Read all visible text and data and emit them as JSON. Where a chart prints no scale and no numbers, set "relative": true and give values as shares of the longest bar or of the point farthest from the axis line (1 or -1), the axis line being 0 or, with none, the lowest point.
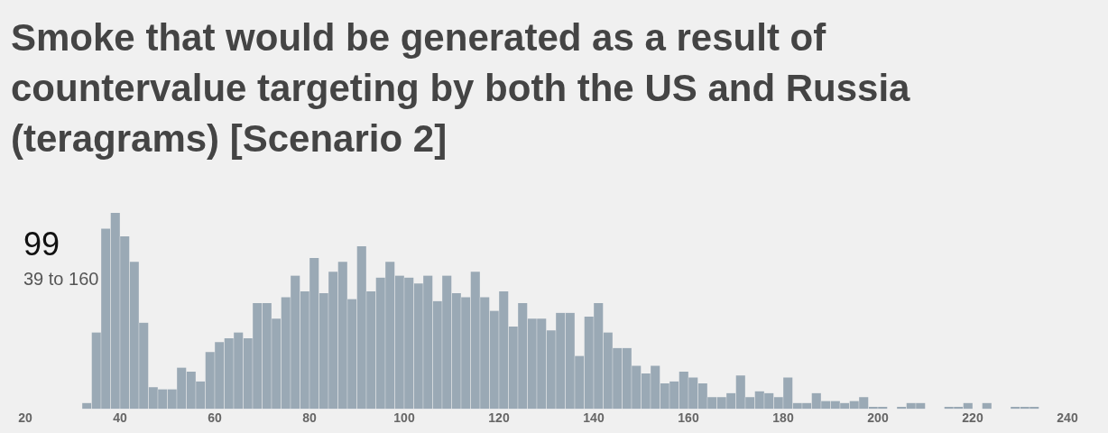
{
  "chart_data": {
    "type": "bar",
    "title": "Smoke that would be generated as a result of countervalue targeting by both the US and Russia (teragrams) [Scenario 2]",
    "annotations": [
      "99",
      "39 to 160"
    ],
    "relative": true,
    "color": "#9aa9b5",
    "x": [
      33,
      35,
      37,
      39,
      41,
      43,
      45,
      47,
      49,
      51,
      53,
      55,
      57,
      59,
      61,
      63,
      65,
      67,
      69,
      71,
      73,
      75,
      77,
      79,
      81,
      83,
      85,
      87,
      89,
      91,
      93,
      95,
      97,
      99,
      101,
      103,
      105,
      107,
      109,
      111,
      113,
      115,
      117,
      119,
      121,
      123,
      125,
      127,
      129,
      131,
      133,
      135,
      137,
      139,
      141,
      143,
      145,
      147,
      149,
      151,
      153,
      155,
      157,
      159,
      161,
      163,
      165,
      167,
      169,
      171,
      173,
      175,
      177,
      179,
      181,
      183,
      185,
      187,
      189,
      191,
      193,
      195,
      197,
      199,
      201,
      203,
      205,
      207,
      209,
      211,
      213,
      215,
      217,
      219,
      221,
      223,
      225,
      227,
      229,
      231,
      233
    ],
    "values": [
      0.03,
      0.39,
      0.92,
      1,
      0.88,
      0.75,
      0.44,
      0.11,
      0.1,
      0.1,
      0.21,
      0.19,
      0.14,
      0.29,
      0.34,
      0.36,
      0.39,
      0.36,
      0.54,
      0.54,
      0.46,
      0.57,
      0.68,
      0.6,
      0.77,
      0.59,
      0.7,
      0.75,
      0.56,
      0.83,
      0.6,
      0.67,
      0.75,
      0.68,
      0.67,
      0.64,
      0.68,
      0.55,
      0.68,
      0.59,
      0.57,
      0.7,
      0.57,
      0.5,
      0.6,
      0.42,
      0.54,
      0.46,
      0.46,
      0.4,
      0.49,
      0.49,
      0.27,
      0.47,
      0.54,
      0.39,
      0.31,
      0.31,
      0.22,
      0.18,
      0.22,
      0.13,
      0.14,
      0.19,
      0.16,
      0.13,
      0.06,
      0.06,
      0.08,
      0.17,
      0.06,
      0.09,
      0.08,
      0.06,
      0.16,
      0.03,
      0.03,
      0.08,
      0.04,
      0.04,
      0.03,
      0.04,
      0.06,
      0.01,
      0.01,
      0,
      0.01,
      0.03,
      0.03,
      0,
      0,
      0.01,
      0.01,
      0.03,
      0,
      0.03,
      0,
      0,
      0.01,
      0.01,
      0.01
    ],
    "xlim": [
      20,
      240
    ],
    "xticks": [
      20,
      40,
      60,
      80,
      100,
      120,
      140,
      160,
      180,
      200,
      220,
      240
    ]
  }
}
